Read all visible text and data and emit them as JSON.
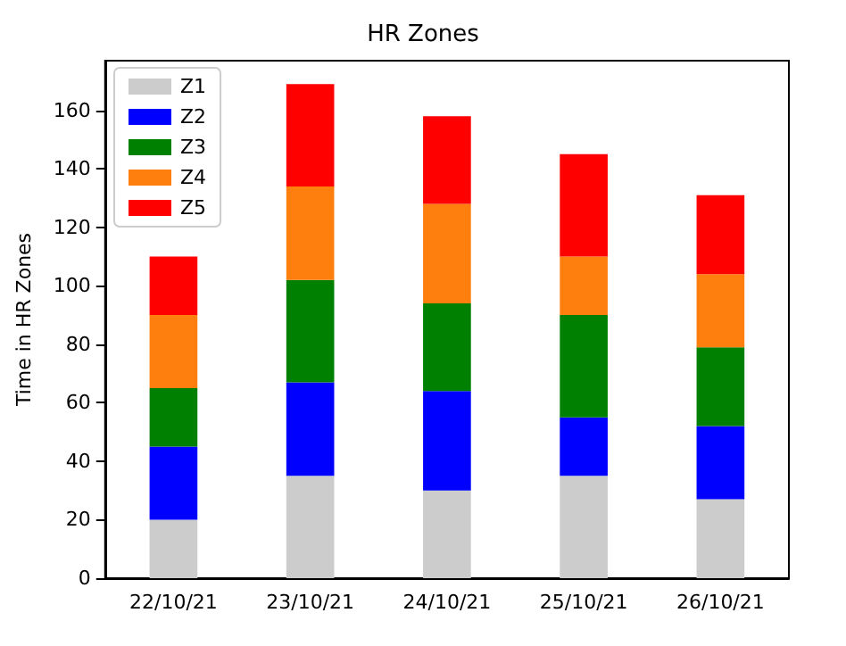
{
  "chart_data": {
    "type": "bar",
    "title": "HR Zones",
    "ylabel": "Time in HR Zones",
    "stacked": true,
    "categories": [
      "22/10/21",
      "23/10/21",
      "24/10/21",
      "25/10/21",
      "26/10/21"
    ],
    "series": [
      {
        "name": "Z1",
        "color": "#cccccc",
        "values": [
          20,
          35,
          30,
          35,
          27
        ]
      },
      {
        "name": "Z2",
        "color": "#0000ff",
        "values": [
          25,
          32,
          34,
          20,
          25
        ]
      },
      {
        "name": "Z3",
        "color": "#008000",
        "values": [
          20,
          35,
          30,
          35,
          27
        ]
      },
      {
        "name": "Z4",
        "color": "#ff7f0e",
        "values": [
          25,
          32,
          34,
          20,
          25
        ]
      },
      {
        "name": "Z5",
        "color": "#ff0000",
        "values": [
          20,
          35,
          30,
          35,
          27
        ]
      }
    ],
    "ylim": [
      0,
      177
    ],
    "yticks": [
      0,
      20,
      40,
      60,
      80,
      100,
      120,
      140,
      160
    ],
    "grid": false,
    "legend": "top left"
  }
}
